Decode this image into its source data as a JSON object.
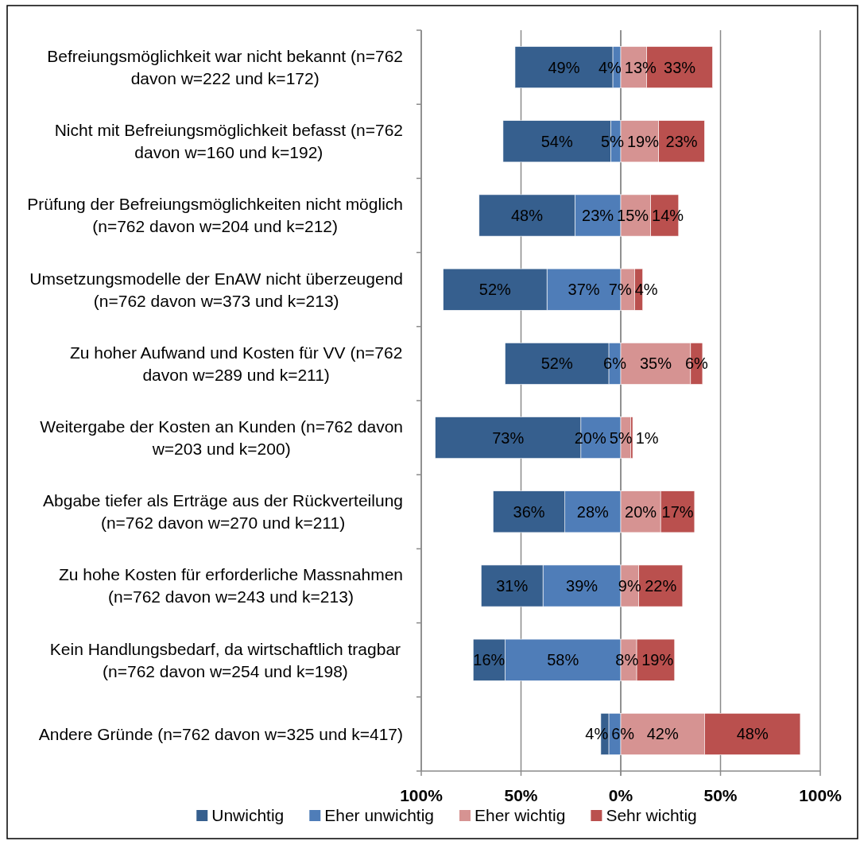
{
  "chart_data": [
    {
      "type": "bar",
      "orientation": "horizontal",
      "stacked": true,
      "categories": [
        "Befreiungsmöglichkeit war nicht bekannt (n=762 davon w=222 und k=172)",
        "Nicht mit Befreiungsmöglichkeit befasst (n=762 davon w=160 und k=192)",
        "Prüfung der Befreiungsmöglichkeiten nicht möglich (n=762 davon w=204 und k=212)",
        "Umsetzungsmodelle der EnAW nicht überzeugend (n=762 davon w=373 und k=213)",
        "Zu hoher Aufwand und Kosten für VV (n=762 davon w=289 und k=211)",
        "Weitergabe der Kosten an Kunden (n=762 davon w=203 und k=200)",
        "Abgabe tiefer als Erträge aus der Rückverteilung (n=762 davon w=270 und k=211)",
        "Zu hohe Kosten für erforderliche Massnahmen (n=762 davon w=243 und k=213)",
        "Kein Handlungsbedarf,  da wirtschaftlich tragbar (n=762 davon w=254 und k=198)",
        "Andere Gründe (n=762 davon w=325 und k=417)"
      ],
      "series": [
        {
          "name": "Eher unwichtig",
          "color": "#4f7db8",
          "values": [
            4,
            5,
            23,
            37,
            6,
            20,
            28,
            39,
            58,
            6
          ],
          "value_labels": [
            "4%",
            "5%",
            "23%",
            "37%",
            "6%",
            "20%",
            "28%",
            "39%",
            "58%",
            "6%"
          ]
        },
        {
          "name": "Unwichtig",
          "color": "#365f8e",
          "values": [
            49,
            54,
            48,
            52,
            52,
            73,
            36,
            31,
            16,
            4
          ],
          "value_labels": [
            "49%",
            "54%",
            "48%",
            "52%",
            "52%",
            "73%",
            "36%",
            "31%",
            "16%",
            "4%"
          ]
        }
      ],
      "xlim": [
        100,
        0
      ],
      "xticks": [
        {
          "value": 100,
          "label": "100%"
        },
        {
          "value": 50,
          "label": "50%"
        },
        {
          "value": 0,
          "label": "0%"
        }
      ],
      "grid": "x",
      "legend": "bottom"
    },
    {
      "type": "bar",
      "orientation": "horizontal",
      "stacked": true,
      "categories": [
        null,
        null,
        null,
        null,
        null,
        null,
        null,
        null,
        null,
        null
      ],
      "series": [
        {
          "name": "Eher wichtig",
          "color": "#d69392",
          "values": [
            13,
            19,
            15,
            7,
            35,
            5,
            20,
            9,
            8,
            42
          ],
          "value_labels": [
            "13%",
            "19%",
            "15%",
            "7%",
            "35%",
            "5%",
            "20%",
            "9%",
            "8%",
            "42%"
          ]
        },
        {
          "name": "Sehr wichtig",
          "color": "#ba504e",
          "values": [
            33,
            23,
            14,
            4,
            6,
            1,
            17,
            22,
            19,
            48
          ],
          "value_labels": [
            "33%",
            "23%",
            "14%",
            "4%",
            "6%",
            "1%",
            "17%",
            "22%",
            "19%",
            "48%"
          ]
        }
      ],
      "xlim": [
        0,
        100
      ],
      "xticks": [
        {
          "value": 0,
          "label": null
        },
        {
          "value": 50,
          "label": "50%"
        },
        {
          "value": 100,
          "label": "100%"
        }
      ],
      "grid": "x",
      "legend": "bottom"
    }
  ]
}
